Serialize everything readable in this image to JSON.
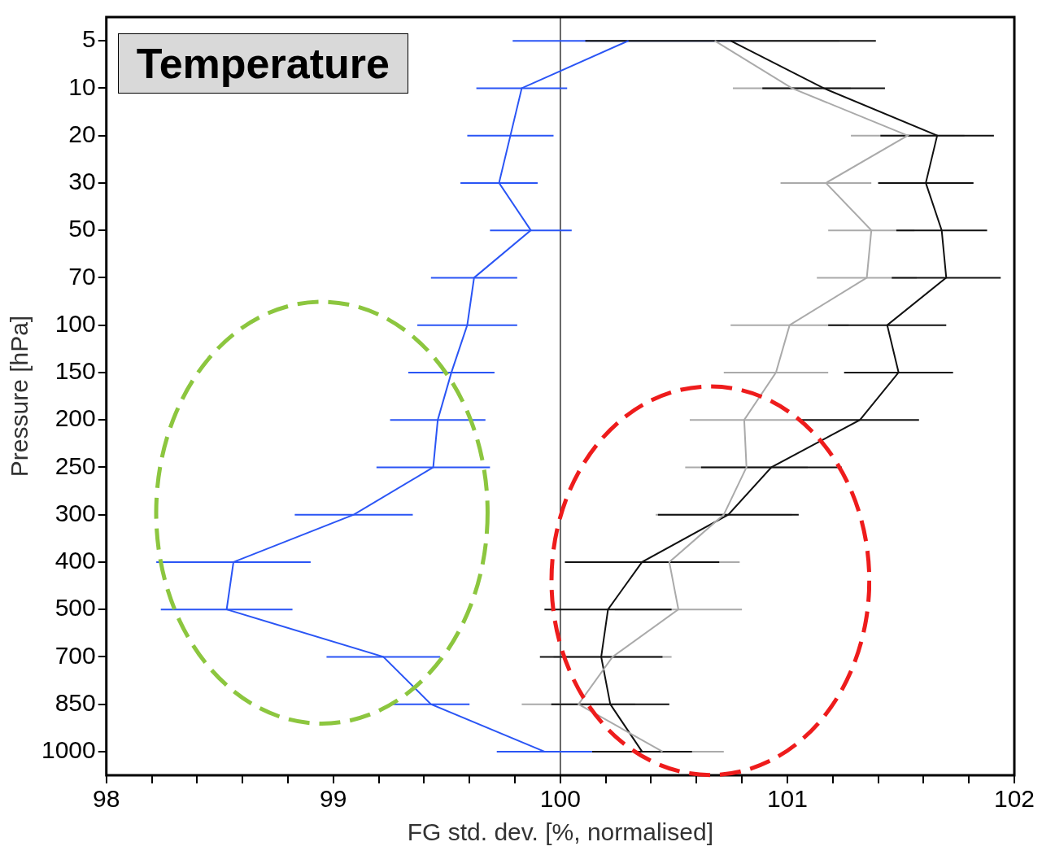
{
  "chart_data": {
    "type": "line",
    "title": "Temperature",
    "xlabel": "FG std. dev. [%, normalised]",
    "ylabel": "Pressure [hPa]",
    "orientation": "horizontal",
    "categories": [
      "5",
      "10",
      "20",
      "30",
      "50",
      "70",
      "100",
      "150",
      "200",
      "250",
      "300",
      "400",
      "500",
      "700",
      "850",
      "1000"
    ],
    "xlim": [
      98,
      102
    ],
    "xticks": [
      98,
      {
        "value": 98.2,
        "label": null
      },
      {
        "value": 98.4,
        "label": null
      },
      {
        "value": 98.6,
        "label": null
      },
      {
        "value": 98.8,
        "label": null
      },
      99,
      {
        "value": 99.2,
        "label": null
      },
      {
        "value": 99.4,
        "label": null
      },
      {
        "value": 99.6,
        "label": null
      },
      {
        "value": 99.8,
        "label": null
      },
      100,
      {
        "value": 100.2,
        "label": null
      },
      {
        "value": 100.4,
        "label": null
      },
      {
        "value": 100.6,
        "label": null
      },
      {
        "value": 100.8,
        "label": null
      },
      101,
      {
        "value": 101.2,
        "label": null
      },
      {
        "value": 101.4,
        "label": null
      },
      {
        "value": 101.6,
        "label": null
      },
      {
        "value": 101.8,
        "label": null
      },
      102
    ],
    "ref_lines": [
      {
        "axis": "x",
        "value": 100,
        "color": "#333333"
      }
    ],
    "grid": false,
    "legend": false,
    "marker": "none",
    "line_style": "solid",
    "series": [
      {
        "color": "#2a55f5",
        "values": [
          100.3,
          99.83,
          99.78,
          99.73,
          99.87,
          99.62,
          99.59,
          99.52,
          99.46,
          99.44,
          99.09,
          98.56,
          98.53,
          99.22,
          99.43,
          99.93
        ],
        "errors": [
          0.51,
          0.2,
          0.19,
          0.17,
          0.18,
          0.19,
          0.22,
          0.19,
          0.21,
          0.25,
          0.26,
          0.34,
          0.29,
          0.25,
          0.17,
          0.21
        ]
      },
      {
        "color": "#aaaaaa",
        "values": [
          100.68,
          101.02,
          101.53,
          101.17,
          101.37,
          101.35,
          101.01,
          100.95,
          100.81,
          100.82,
          100.72,
          100.48,
          100.52,
          100.23,
          100.08,
          100.45
        ],
        "errors": [
          0.55,
          0.26,
          0.25,
          0.2,
          0.19,
          0.22,
          0.26,
          0.23,
          0.24,
          0.27,
          0.3,
          0.31,
          0.28,
          0.26,
          0.25,
          0.27
        ]
      },
      {
        "color": "#111111",
        "values": [
          100.75,
          101.16,
          101.66,
          101.61,
          101.68,
          101.7,
          101.44,
          101.49,
          101.32,
          100.93,
          100.74,
          100.36,
          100.21,
          100.18,
          100.22,
          100.36
        ],
        "errors": [
          0.64,
          0.27,
          0.25,
          0.21,
          0.2,
          0.24,
          0.26,
          0.24,
          0.26,
          0.31,
          0.31,
          0.34,
          0.28,
          0.27,
          0.26,
          0.22
        ]
      }
    ]
  }
}
